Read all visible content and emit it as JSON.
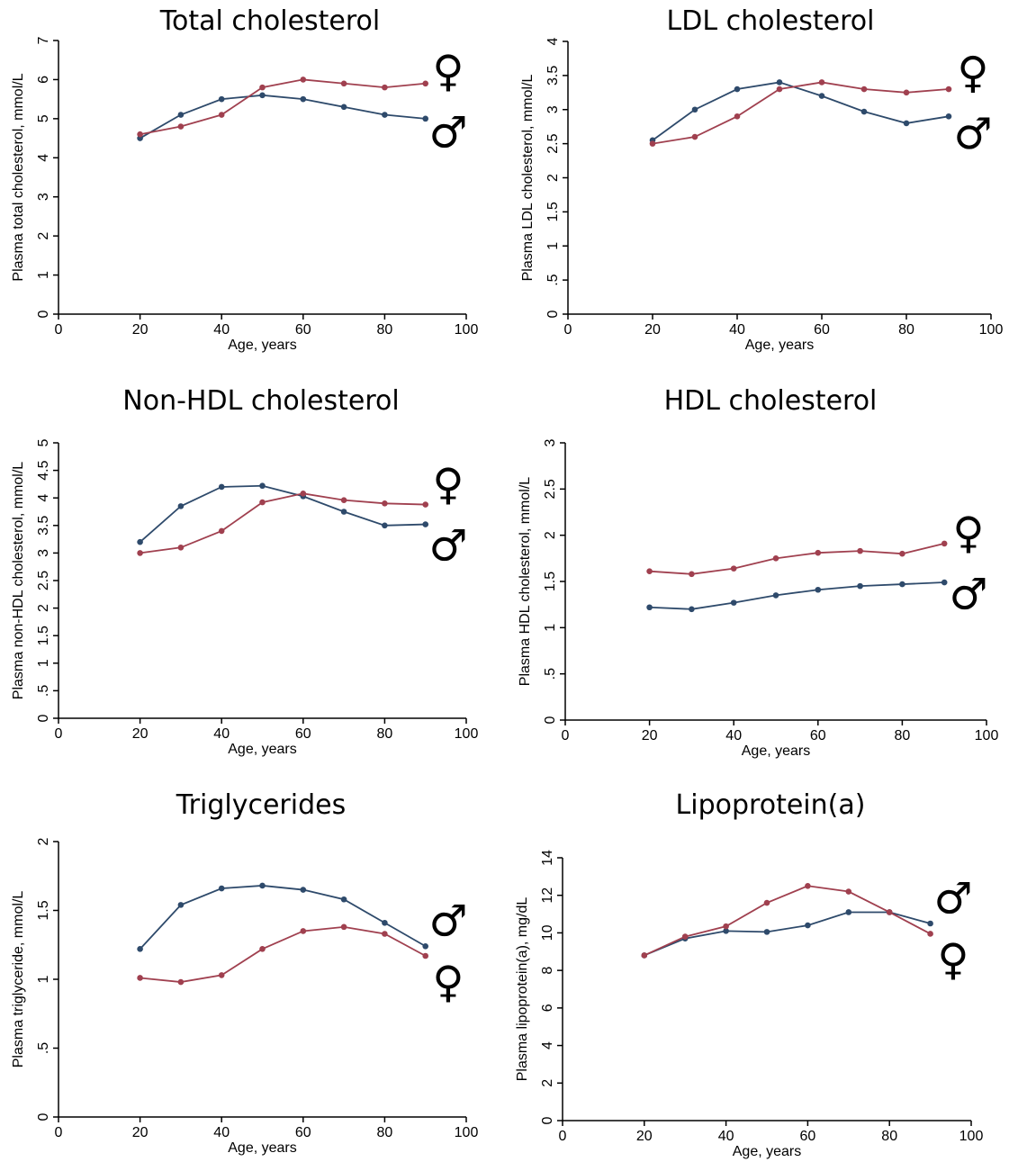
{
  "colors": {
    "male": "#2e4a6b",
    "female": "#a0404f",
    "axis": "#000000"
  },
  "chart_data": [
    {
      "type": "line",
      "title": "Total cholesterol",
      "xlabel": "Age, years",
      "ylabel": "Plasma total cholesterol, mmol/L",
      "xlim": [
        0,
        100
      ],
      "ylim": [
        0,
        7
      ],
      "xticks": [
        0,
        20,
        40,
        60,
        80,
        100
      ],
      "xtick_labels": [
        "0",
        "20",
        "40",
        "60",
        "80",
        "100"
      ],
      "yticks": [
        0,
        1,
        2,
        3,
        4,
        5,
        6,
        7
      ],
      "ytick_labels": [
        "0",
        "1",
        "2",
        "3",
        "4",
        "5",
        "6",
        "7"
      ],
      "x": [
        20,
        30,
        40,
        50,
        60,
        70,
        80,
        90
      ],
      "series": [
        {
          "key": "male",
          "symbol": "♂",
          "values": [
            4.5,
            5.1,
            5.5,
            5.6,
            5.5,
            5.3,
            5.1,
            5.0
          ]
        },
        {
          "key": "female",
          "symbol": "♀",
          "values": [
            4.6,
            4.8,
            5.1,
            5.8,
            6.0,
            5.9,
            5.8,
            5.9
          ]
        }
      ],
      "legend_order": [
        "female",
        "male"
      ]
    },
    {
      "type": "line",
      "title": "LDL cholesterol",
      "xlabel": "Age, years",
      "ylabel": "Plasma LDL cholesterol, mmol/L",
      "xlim": [
        0,
        100
      ],
      "ylim": [
        0,
        4
      ],
      "xticks": [
        0,
        20,
        40,
        60,
        80,
        100
      ],
      "xtick_labels": [
        "0",
        "20",
        "40",
        "60",
        "80",
        "100"
      ],
      "yticks": [
        0,
        0.5,
        1,
        1.5,
        2,
        2.5,
        3,
        3.5,
        4
      ],
      "ytick_labels": [
        "0",
        ".5",
        "1",
        "1.5",
        "2",
        "2.5",
        "3",
        "3.5",
        "4"
      ],
      "x": [
        20,
        30,
        40,
        50,
        60,
        70,
        80,
        90
      ],
      "series": [
        {
          "key": "male",
          "symbol": "♂",
          "values": [
            2.55,
            3.0,
            3.3,
            3.4,
            3.2,
            2.97,
            2.8,
            2.9
          ]
        },
        {
          "key": "female",
          "symbol": "♀",
          "values": [
            2.5,
            2.6,
            2.9,
            3.3,
            3.4,
            3.3,
            3.25,
            3.3
          ]
        }
      ],
      "legend_order": [
        "female",
        "male"
      ]
    },
    {
      "type": "line",
      "title": "Non-HDL cholesterol",
      "xlabel": "Age, years",
      "ylabel": "Plasma non-HDL cholesterol, mmol/L",
      "xlim": [
        0,
        100
      ],
      "ylim": [
        0,
        5
      ],
      "xticks": [
        0,
        20,
        40,
        60,
        80,
        100
      ],
      "xtick_labels": [
        "0",
        "20",
        "40",
        "60",
        "80",
        "100"
      ],
      "yticks": [
        0,
        0.5,
        1,
        1.5,
        2,
        2.5,
        3,
        3.5,
        4,
        4.5,
        5
      ],
      "ytick_labels": [
        "0",
        ".5",
        "1",
        "1.5",
        "2",
        "2.5",
        "3",
        "3.5",
        "4",
        "4.5",
        "5"
      ],
      "x": [
        20,
        30,
        40,
        50,
        60,
        70,
        80,
        90
      ],
      "series": [
        {
          "key": "male",
          "symbol": "♂",
          "values": [
            3.2,
            3.85,
            4.2,
            4.22,
            4.03,
            3.75,
            3.5,
            3.52
          ]
        },
        {
          "key": "female",
          "symbol": "♀",
          "values": [
            3.0,
            3.1,
            3.4,
            3.92,
            4.08,
            3.96,
            3.9,
            3.88
          ]
        }
      ],
      "legend_order": [
        "female",
        "male"
      ]
    },
    {
      "type": "line",
      "title": "HDL cholesterol",
      "xlabel": "Age, years",
      "ylabel": "Plasma HDL cholesterol, mmol/L",
      "xlim": [
        0,
        100
      ],
      "ylim": [
        0,
        3
      ],
      "xticks": [
        0,
        20,
        40,
        60,
        80,
        100
      ],
      "xtick_labels": [
        "0",
        "20",
        "40",
        "60",
        "80",
        "100"
      ],
      "yticks": [
        0,
        0.5,
        1,
        1.5,
        2,
        2.5,
        3
      ],
      "ytick_labels": [
        "0",
        ".5",
        "1",
        "1.5",
        "2",
        "2.5",
        "3"
      ],
      "x": [
        20,
        30,
        40,
        50,
        60,
        70,
        80,
        90
      ],
      "series": [
        {
          "key": "male",
          "symbol": "♂",
          "values": [
            1.22,
            1.2,
            1.27,
            1.35,
            1.41,
            1.45,
            1.47,
            1.49
          ]
        },
        {
          "key": "female",
          "symbol": "♀",
          "values": [
            1.61,
            1.58,
            1.64,
            1.75,
            1.81,
            1.83,
            1.8,
            1.91
          ]
        }
      ],
      "legend_order": [
        "female",
        "male"
      ]
    },
    {
      "type": "line",
      "title": "Triglycerides",
      "xlabel": "Age, years",
      "ylabel": "Plasma triglyceride, mmol/L",
      "xlim": [
        0,
        100
      ],
      "ylim": [
        0,
        2
      ],
      "xticks": [
        0,
        20,
        40,
        60,
        80,
        100
      ],
      "xtick_labels": [
        "0",
        "20",
        "40",
        "60",
        "80",
        "100"
      ],
      "yticks": [
        0,
        0.5,
        1,
        1.5,
        2
      ],
      "ytick_labels": [
        "0",
        ".5",
        "1",
        "1.5",
        "2"
      ],
      "x": [
        20,
        30,
        40,
        50,
        60,
        70,
        80,
        90
      ],
      "series": [
        {
          "key": "male",
          "symbol": "♂",
          "values": [
            1.22,
            1.54,
            1.66,
            1.68,
            1.65,
            1.58,
            1.41,
            1.24
          ]
        },
        {
          "key": "female",
          "symbol": "♀",
          "values": [
            1.01,
            0.98,
            1.03,
            1.22,
            1.35,
            1.38,
            1.33,
            1.17
          ]
        }
      ],
      "legend_order": [
        "male",
        "female"
      ]
    },
    {
      "type": "line",
      "title": "Lipoprotein(a)",
      "xlabel": "Age, years",
      "ylabel": "Plasma lipoprotein(a), mg/dL",
      "xlim": [
        0,
        100
      ],
      "ylim": [
        0,
        14
      ],
      "xticks": [
        0,
        20,
        40,
        60,
        80,
        100
      ],
      "xtick_labels": [
        "0",
        "20",
        "40",
        "60",
        "80",
        "100"
      ],
      "yticks": [
        0,
        2,
        4,
        6,
        8,
        10,
        12,
        14
      ],
      "ytick_labels": [
        "0",
        "2",
        "4",
        "6",
        "8",
        "10",
        "12",
        "14"
      ],
      "x": [
        20,
        30,
        40,
        50,
        60,
        70,
        80,
        90
      ],
      "series": [
        {
          "key": "male",
          "symbol": "♂",
          "values": [
            8.8,
            9.7,
            10.1,
            10.05,
            10.4,
            11.1,
            11.1,
            10.5
          ]
        },
        {
          "key": "female",
          "symbol": "♀",
          "values": [
            8.8,
            9.8,
            10.35,
            11.6,
            12.5,
            12.2,
            11.1,
            9.95
          ]
        }
      ],
      "legend_order": [
        "male",
        "female"
      ]
    }
  ]
}
